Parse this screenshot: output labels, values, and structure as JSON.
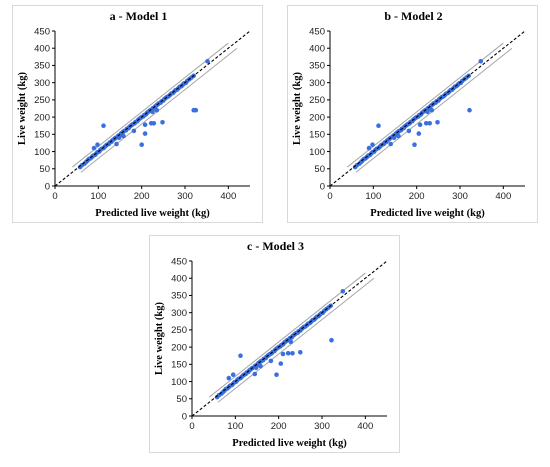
{
  "chart_data": [
    {
      "type": "scatter",
      "title": "a - Model 1",
      "xlabel": "Predicted live weight (kg)",
      "ylabel": "Live weight (kg)",
      "xlim": [
        0,
        450
      ],
      "ylim": [
        0,
        450
      ],
      "xticks": [
        0,
        100,
        200,
        300,
        400
      ],
      "yticks": [
        0,
        50,
        100,
        150,
        200,
        250,
        300,
        350,
        400,
        450
      ],
      "grid": false,
      "reference_line": "y = x (dashed)",
      "prediction_band": "solid grey lines",
      "points": [
        [
          58,
          55
        ],
        [
          62,
          60
        ],
        [
          68,
          65
        ],
        [
          72,
          70
        ],
        [
          75,
          74
        ],
        [
          78,
          78
        ],
        [
          82,
          80
        ],
        [
          85,
          84
        ],
        [
          88,
          88
        ],
        [
          92,
          90
        ],
        [
          95,
          94
        ],
        [
          98,
          98
        ],
        [
          102,
          100
        ],
        [
          105,
          105
        ],
        [
          108,
          108
        ],
        [
          112,
          110
        ],
        [
          115,
          114
        ],
        [
          118,
          118
        ],
        [
          120,
          120
        ],
        [
          124,
          122
        ],
        [
          126,
          126
        ],
        [
          130,
          128
        ],
        [
          132,
          132
        ],
        [
          135,
          135
        ],
        [
          138,
          138
        ],
        [
          140,
          140
        ],
        [
          144,
          142
        ],
        [
          146,
          146
        ],
        [
          150,
          148
        ],
        [
          152,
          152
        ],
        [
          155,
          155
        ],
        [
          158,
          158
        ],
        [
          160,
          160
        ],
        [
          164,
          162
        ],
        [
          166,
          166
        ],
        [
          170,
          168
        ],
        [
          172,
          172
        ],
        [
          175,
          175
        ],
        [
          178,
          178
        ],
        [
          180,
          180
        ],
        [
          184,
          182
        ],
        [
          186,
          186
        ],
        [
          190,
          188
        ],
        [
          192,
          192
        ],
        [
          195,
          195
        ],
        [
          198,
          198
        ],
        [
          200,
          200
        ],
        [
          204,
          202
        ],
        [
          206,
          206
        ],
        [
          210,
          208
        ],
        [
          212,
          212
        ],
        [
          215,
          215
        ],
        [
          218,
          218
        ],
        [
          220,
          220
        ],
        [
          224,
          222
        ],
        [
          226,
          226
        ],
        [
          230,
          228
        ],
        [
          232,
          232
        ],
        [
          235,
          235
        ],
        [
          238,
          238
        ],
        [
          240,
          240
        ],
        [
          244,
          242
        ],
        [
          246,
          246
        ],
        [
          250,
          248
        ],
        [
          252,
          252
        ],
        [
          255,
          255
        ],
        [
          258,
          258
        ],
        [
          262,
          260
        ],
        [
          265,
          264
        ],
        [
          268,
          268
        ],
        [
          272,
          270
        ],
        [
          275,
          274
        ],
        [
          278,
          278
        ],
        [
          282,
          280
        ],
        [
          285,
          284
        ],
        [
          288,
          288
        ],
        [
          292,
          290
        ],
        [
          295,
          294
        ],
        [
          298,
          298
        ],
        [
          302,
          300
        ],
        [
          305,
          305
        ],
        [
          310,
          310
        ],
        [
          315,
          315
        ],
        [
          320,
          320
        ],
        [
          352,
          362
        ],
        [
          90,
          110
        ],
        [
          98,
          120
        ],
        [
          112,
          175
        ],
        [
          142,
          122
        ],
        [
          148,
          140
        ],
        [
          158,
          145
        ],
        [
          182,
          160
        ],
        [
          200,
          120
        ],
        [
          208,
          152
        ],
        [
          208,
          178
        ],
        [
          222,
          182
        ],
        [
          225,
          215
        ],
        [
          228,
          182
        ],
        [
          235,
          220
        ],
        [
          248,
          185
        ],
        [
          320,
          220
        ],
        [
          325,
          220
        ]
      ]
    },
    {
      "type": "scatter",
      "title": "b - Model 2",
      "xlabel": "Predicted live weight (kg)",
      "ylabel": "Live weight (kg)",
      "xlim": [
        0,
        450
      ],
      "ylim": [
        0,
        450
      ],
      "xticks": [
        0,
        100,
        200,
        300,
        400
      ],
      "yticks": [
        0,
        50,
        100,
        150,
        200,
        250,
        300,
        350,
        400,
        450
      ],
      "grid": false,
      "reference_line": "y = x (dashed)",
      "prediction_band": "solid grey lines",
      "points": [
        [
          58,
          55
        ],
        [
          62,
          60
        ],
        [
          68,
          65
        ],
        [
          72,
          70
        ],
        [
          75,
          74
        ],
        [
          78,
          78
        ],
        [
          82,
          80
        ],
        [
          85,
          84
        ],
        [
          88,
          88
        ],
        [
          92,
          90
        ],
        [
          95,
          94
        ],
        [
          98,
          98
        ],
        [
          102,
          100
        ],
        [
          105,
          105
        ],
        [
          108,
          108
        ],
        [
          112,
          110
        ],
        [
          115,
          114
        ],
        [
          118,
          118
        ],
        [
          120,
          120
        ],
        [
          124,
          122
        ],
        [
          126,
          126
        ],
        [
          130,
          128
        ],
        [
          132,
          132
        ],
        [
          135,
          135
        ],
        [
          138,
          138
        ],
        [
          140,
          140
        ],
        [
          144,
          142
        ],
        [
          146,
          146
        ],
        [
          150,
          148
        ],
        [
          152,
          152
        ],
        [
          155,
          155
        ],
        [
          158,
          158
        ],
        [
          160,
          160
        ],
        [
          164,
          162
        ],
        [
          166,
          166
        ],
        [
          170,
          168
        ],
        [
          172,
          172
        ],
        [
          175,
          175
        ],
        [
          178,
          178
        ],
        [
          180,
          180
        ],
        [
          184,
          182
        ],
        [
          186,
          186
        ],
        [
          190,
          188
        ],
        [
          192,
          192
        ],
        [
          195,
          195
        ],
        [
          198,
          198
        ],
        [
          200,
          200
        ],
        [
          204,
          202
        ],
        [
          206,
          206
        ],
        [
          210,
          208
        ],
        [
          212,
          212
        ],
        [
          215,
          215
        ],
        [
          218,
          218
        ],
        [
          220,
          220
        ],
        [
          224,
          222
        ],
        [
          226,
          226
        ],
        [
          230,
          228
        ],
        [
          232,
          232
        ],
        [
          235,
          235
        ],
        [
          238,
          238
        ],
        [
          240,
          240
        ],
        [
          244,
          242
        ],
        [
          246,
          246
        ],
        [
          250,
          248
        ],
        [
          252,
          252
        ],
        [
          255,
          255
        ],
        [
          258,
          258
        ],
        [
          262,
          260
        ],
        [
          265,
          264
        ],
        [
          268,
          268
        ],
        [
          272,
          270
        ],
        [
          275,
          274
        ],
        [
          278,
          278
        ],
        [
          282,
          280
        ],
        [
          285,
          284
        ],
        [
          288,
          288
        ],
        [
          292,
          290
        ],
        [
          295,
          294
        ],
        [
          298,
          298
        ],
        [
          302,
          300
        ],
        [
          305,
          305
        ],
        [
          310,
          310
        ],
        [
          315,
          315
        ],
        [
          320,
          320
        ],
        [
          348,
          362
        ],
        [
          90,
          110
        ],
        [
          98,
          120
        ],
        [
          112,
          175
        ],
        [
          140,
          122
        ],
        [
          148,
          140
        ],
        [
          158,
          145
        ],
        [
          182,
          160
        ],
        [
          195,
          120
        ],
        [
          205,
          152
        ],
        [
          208,
          178
        ],
        [
          222,
          182
        ],
        [
          225,
          215
        ],
        [
          230,
          182
        ],
        [
          235,
          220
        ],
        [
          248,
          185
        ],
        [
          322,
          220
        ]
      ]
    },
    {
      "type": "scatter",
      "title": "c - Model 3",
      "xlabel": "Predicted live weight (kg)",
      "ylabel": "Live weight (kg)",
      "xlim": [
        0,
        450
      ],
      "ylim": [
        0,
        450
      ],
      "xticks": [
        0,
        100,
        200,
        300,
        400
      ],
      "yticks": [
        0,
        50,
        100,
        150,
        200,
        250,
        300,
        350,
        400,
        450
      ],
      "grid": false,
      "reference_line": "y = x (dashed)",
      "prediction_band": "solid grey lines",
      "points": [
        [
          58,
          55
        ],
        [
          62,
          60
        ],
        [
          68,
          65
        ],
        [
          72,
          70
        ],
        [
          75,
          74
        ],
        [
          78,
          78
        ],
        [
          82,
          80
        ],
        [
          85,
          84
        ],
        [
          88,
          88
        ],
        [
          92,
          90
        ],
        [
          95,
          94
        ],
        [
          98,
          98
        ],
        [
          102,
          100
        ],
        [
          105,
          105
        ],
        [
          108,
          108
        ],
        [
          112,
          110
        ],
        [
          115,
          114
        ],
        [
          118,
          118
        ],
        [
          120,
          120
        ],
        [
          124,
          122
        ],
        [
          126,
          126
        ],
        [
          130,
          128
        ],
        [
          132,
          132
        ],
        [
          135,
          135
        ],
        [
          138,
          138
        ],
        [
          140,
          140
        ],
        [
          144,
          142
        ],
        [
          146,
          146
        ],
        [
          150,
          148
        ],
        [
          152,
          152
        ],
        [
          155,
          155
        ],
        [
          158,
          158
        ],
        [
          160,
          160
        ],
        [
          164,
          162
        ],
        [
          166,
          166
        ],
        [
          170,
          168
        ],
        [
          172,
          172
        ],
        [
          175,
          175
        ],
        [
          178,
          178
        ],
        [
          180,
          180
        ],
        [
          184,
          182
        ],
        [
          186,
          186
        ],
        [
          190,
          188
        ],
        [
          192,
          192
        ],
        [
          195,
          195
        ],
        [
          198,
          198
        ],
        [
          200,
          200
        ],
        [
          204,
          202
        ],
        [
          206,
          206
        ],
        [
          210,
          208
        ],
        [
          212,
          212
        ],
        [
          215,
          215
        ],
        [
          218,
          218
        ],
        [
          220,
          220
        ],
        [
          224,
          222
        ],
        [
          226,
          226
        ],
        [
          230,
          228
        ],
        [
          232,
          232
        ],
        [
          235,
          235
        ],
        [
          238,
          238
        ],
        [
          240,
          240
        ],
        [
          244,
          242
        ],
        [
          246,
          246
        ],
        [
          250,
          248
        ],
        [
          252,
          252
        ],
        [
          255,
          255
        ],
        [
          258,
          258
        ],
        [
          262,
          260
        ],
        [
          265,
          264
        ],
        [
          268,
          268
        ],
        [
          272,
          270
        ],
        [
          275,
          274
        ],
        [
          278,
          278
        ],
        [
          282,
          280
        ],
        [
          285,
          284
        ],
        [
          288,
          288
        ],
        [
          292,
          290
        ],
        [
          295,
          294
        ],
        [
          298,
          298
        ],
        [
          302,
          300
        ],
        [
          305,
          305
        ],
        [
          310,
          310
        ],
        [
          315,
          315
        ],
        [
          320,
          320
        ],
        [
          348,
          362
        ],
        [
          85,
          110
        ],
        [
          95,
          120
        ],
        [
          112,
          175
        ],
        [
          145,
          122
        ],
        [
          148,
          140
        ],
        [
          158,
          145
        ],
        [
          182,
          160
        ],
        [
          195,
          120
        ],
        [
          205,
          152
        ],
        [
          210,
          180
        ],
        [
          222,
          182
        ],
        [
          228,
          215
        ],
        [
          232,
          182
        ],
        [
          250,
          185
        ],
        [
          322,
          220
        ]
      ]
    }
  ],
  "colors": {
    "points": "#3a6fe0",
    "identity_line": "#000000",
    "band_lines": "#a6a6a6",
    "axes": "#000000",
    "panel_border": "#d9d9d9"
  }
}
